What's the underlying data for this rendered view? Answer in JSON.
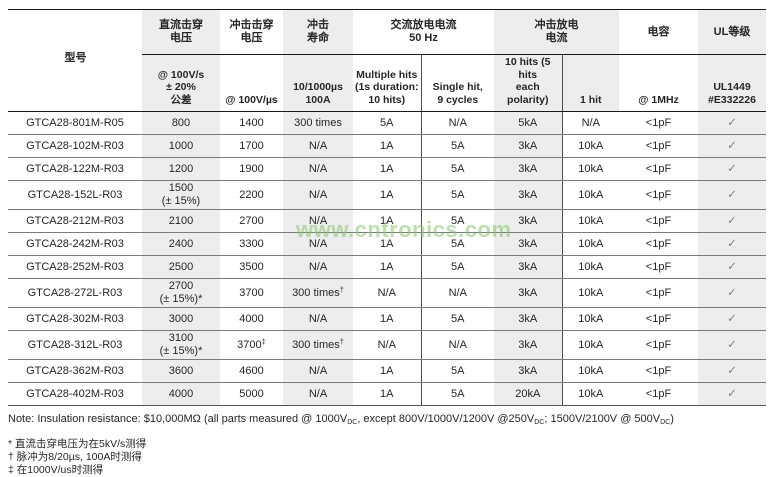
{
  "watermark": "www.cntronics.com",
  "colors": {
    "shaded_column": "#ededed",
    "header_line": "#1a1a1a",
    "row_line": "#7a7a7a",
    "check": "#7f7f7f",
    "watermark_green": "#8ac470"
  },
  "table": {
    "model_header": "型号",
    "group_headers": [
      "直流击穿\n电压",
      "冲击击穿\n电压",
      "冲击\n寿命",
      "交流放电电流\n50 Hz",
      "冲击放电\n电流",
      "电容",
      "UL等级"
    ],
    "sub_headers": [
      "@ 100V/s\n± 20%\n公差",
      "@ 100V/µs",
      "10/1000µs\n100A",
      "Multiple hits\n(1s duration:\n10 hits)",
      "Single hit,\n9 cycles",
      "10 hits (5 hits\neach polarity)",
      "1 hit",
      "@ 1MHz",
      "UL1449\n#E332226"
    ],
    "rows": [
      {
        "model": "GTCA28-801M-R05",
        "cells": [
          "800",
          "1400",
          "300 times",
          "5A",
          "N/A",
          "5kA",
          "N/A",
          "<1pF",
          "✓"
        ]
      },
      {
        "model": "GTCA28-102M-R03",
        "cells": [
          "1000",
          "1700",
          "N/A",
          "1A",
          "5A",
          "3kA",
          "10kA",
          "<1pF",
          "✓"
        ]
      },
      {
        "model": "GTCA28-122M-R03",
        "cells": [
          "1200",
          "1900",
          "N/A",
          "1A",
          "5A",
          "3kA",
          "10kA",
          "<1pF",
          "✓"
        ]
      },
      {
        "model": "GTCA28-152L-R03",
        "cells": [
          "1500\n(± 15%)",
          "2200",
          "N/A",
          "1A",
          "5A",
          "3kA",
          "10kA",
          "<1pF",
          "✓"
        ]
      },
      {
        "model": "GTCA28-212M-R03",
        "cells": [
          "2100",
          "2700",
          "N/A",
          "1A",
          "5A",
          "3kA",
          "10kA",
          "<1pF",
          "✓"
        ]
      },
      {
        "model": "GTCA28-242M-R03",
        "cells": [
          "2400",
          "3300",
          "N/A",
          "1A",
          "5A",
          "3kA",
          "10kA",
          "<1pF",
          "✓"
        ]
      },
      {
        "model": "GTCA28-252M-R03",
        "cells": [
          "2500",
          "3500",
          "N/A",
          "1A",
          "5A",
          "3kA",
          "10kA",
          "<1pF",
          "✓"
        ]
      },
      {
        "model": "GTCA28-272L-R03",
        "cells": [
          "2700\n(± 15%)*",
          "3700",
          "300 times†",
          "N/A",
          "N/A",
          "3kA",
          "10kA",
          "<1pF",
          "✓"
        ]
      },
      {
        "model": "GTCA28-302M-R03",
        "cells": [
          "3000",
          "4000",
          "N/A",
          "1A",
          "5A",
          "3kA",
          "10kA",
          "<1pF",
          "✓"
        ]
      },
      {
        "model": "GTCA28-312L-R03",
        "cells": [
          "3100\n(± 15%)*",
          "3700‡",
          "300 times†",
          "N/A",
          "N/A",
          "3kA",
          "10kA",
          "<1pF",
          "✓"
        ]
      },
      {
        "model": "GTCA28-362M-R03",
        "cells": [
          "3600",
          "4600",
          "N/A",
          "1A",
          "5A",
          "3kA",
          "10kA",
          "<1pF",
          "✓"
        ]
      },
      {
        "model": "GTCA28-402M-R03",
        "cells": [
          "4000",
          "5000",
          "N/A",
          "1A",
          "5A",
          "20kA",
          "10kA",
          "<1pF",
          "✓"
        ]
      }
    ]
  },
  "notes": {
    "main_parts": [
      "Note: Insulation resistance: $10,000MΩ (all parts measured @ 1000V",
      "DC",
      ", except 800V/1000V/1200V @250V",
      "DC",
      "; 1500V/2100V @ 500V",
      "DC",
      ")"
    ],
    "footnotes": [
      "* 直流击穿电压为在5kV/s测得",
      "† 脉冲为8/20µs, 100A时测得",
      "‡ 在1000V/us时测得"
    ]
  }
}
